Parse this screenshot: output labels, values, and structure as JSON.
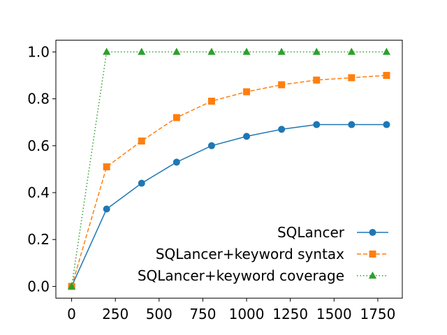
{
  "chart_data": {
    "type": "line",
    "title": "",
    "xlabel": "",
    "ylabel": "",
    "x": [
      0,
      200,
      400,
      600,
      800,
      1000,
      1200,
      1400,
      1600,
      1800
    ],
    "xlim": [
      -90,
      1890
    ],
    "ylim": [
      -0.05,
      1.05
    ],
    "xticks": [
      0,
      250,
      500,
      750,
      1000,
      1250,
      1500,
      1750
    ],
    "xtick_labels": [
      "0",
      "250",
      "500",
      "750",
      "1000",
      "1250",
      "1500",
      "1750"
    ],
    "yticks": [
      0.0,
      0.2,
      0.4,
      0.6,
      0.8,
      1.0
    ],
    "ytick_labels": [
      "0.0",
      "0.2",
      "0.4",
      "0.6",
      "0.8",
      "1.0"
    ],
    "grid": false,
    "legend_position": "lower-right",
    "series": [
      {
        "name": "SQLancer",
        "values": [
          0.0,
          0.33,
          0.44,
          0.53,
          0.6,
          0.64,
          0.67,
          0.69,
          0.69,
          0.69
        ],
        "color": "#1f77b4",
        "line_style": "solid",
        "marker": "circle"
      },
      {
        "name": "SQLancer+keyword syntax",
        "values": [
          0.0,
          0.51,
          0.62,
          0.72,
          0.79,
          0.83,
          0.86,
          0.88,
          0.89,
          0.9
        ],
        "color": "#ff7f0e",
        "line_style": "dashed",
        "marker": "square"
      },
      {
        "name": "SQLancer+keyword coverage",
        "values": [
          0.0,
          1.0,
          1.0,
          1.0,
          1.0,
          1.0,
          1.0,
          1.0,
          1.0,
          1.0
        ],
        "color": "#2ca02c",
        "line_style": "dotted",
        "marker": "triangle"
      }
    ]
  }
}
